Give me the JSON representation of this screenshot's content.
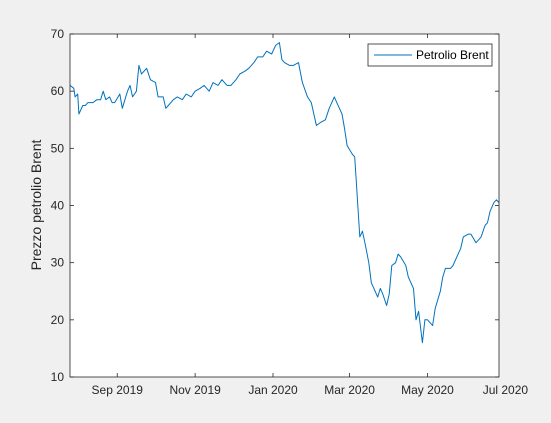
{
  "colors": {
    "figure_background": "#f0f0f0",
    "axes_background": "#ffffff",
    "axis": "#262626",
    "series": "#0072bd"
  },
  "chart_data": {
    "type": "line",
    "title": "",
    "xlabel": "",
    "ylabel": "Prezzo petrolio Brent",
    "xlim": [
      "2019-07-26",
      "2020-06-26"
    ],
    "ylim": [
      10,
      70
    ],
    "y_ticks": [
      10,
      20,
      30,
      40,
      50,
      60,
      70
    ],
    "x_ticks": [
      {
        "date": "2019-09-01",
        "label": "Sep 2019"
      },
      {
        "date": "2019-11-01",
        "label": "Nov 2019"
      },
      {
        "date": "2020-01-01",
        "label": "Jan 2020"
      },
      {
        "date": "2020-03-01",
        "label": "Mar 2020"
      },
      {
        "date": "2020-05-01",
        "label": "May 2020"
      },
      {
        "date": "2020-07-01",
        "label": "Jul 2020"
      }
    ],
    "grid": false,
    "legend": {
      "location": "top-right",
      "entries": [
        "Petrolio Brent"
      ]
    },
    "series": [
      {
        "name": "Petrolio Brent",
        "color": "#0072bd",
        "points": [
          [
            "2019-07-26",
            61.0
          ],
          [
            "2019-07-29",
            60.5
          ],
          [
            "2019-07-30",
            59.0
          ],
          [
            "2019-08-01",
            59.5
          ],
          [
            "2019-08-02",
            56.0
          ],
          [
            "2019-08-05",
            57.5
          ],
          [
            "2019-08-07",
            57.5
          ],
          [
            "2019-08-09",
            58.0
          ],
          [
            "2019-08-13",
            58.0
          ],
          [
            "2019-08-16",
            58.5
          ],
          [
            "2019-08-19",
            58.5
          ],
          [
            "2019-08-21",
            60.0
          ],
          [
            "2019-08-23",
            58.5
          ],
          [
            "2019-08-26",
            59.0
          ],
          [
            "2019-08-28",
            58.0
          ],
          [
            "2019-08-30",
            58.0
          ],
          [
            "2019-09-03",
            59.5
          ],
          [
            "2019-09-05",
            57.0
          ],
          [
            "2019-09-09",
            60.0
          ],
          [
            "2019-09-11",
            61.0
          ],
          [
            "2019-09-13",
            59.0
          ],
          [
            "2019-09-16",
            60.0
          ],
          [
            "2019-09-18",
            64.5
          ],
          [
            "2019-09-20",
            63.0
          ],
          [
            "2019-09-24",
            64.0
          ],
          [
            "2019-09-27",
            62.0
          ],
          [
            "2019-10-01",
            61.5
          ],
          [
            "2019-10-03",
            59.0
          ],
          [
            "2019-10-07",
            59.0
          ],
          [
            "2019-10-09",
            57.0
          ],
          [
            "2019-10-11",
            57.5
          ],
          [
            "2019-10-15",
            58.5
          ],
          [
            "2019-10-18",
            59.0
          ],
          [
            "2019-10-22",
            58.5
          ],
          [
            "2019-10-25",
            59.5
          ],
          [
            "2019-10-29",
            59.0
          ],
          [
            "2019-11-01",
            60.0
          ],
          [
            "2019-11-05",
            60.5
          ],
          [
            "2019-11-08",
            61.0
          ],
          [
            "2019-11-12",
            60.0
          ],
          [
            "2019-11-15",
            61.5
          ],
          [
            "2019-11-19",
            61.0
          ],
          [
            "2019-11-22",
            62.0
          ],
          [
            "2019-11-26",
            61.0
          ],
          [
            "2019-11-29",
            61.0
          ],
          [
            "2019-12-03",
            62.0
          ],
          [
            "2019-12-06",
            63.0
          ],
          [
            "2019-12-10",
            63.5
          ],
          [
            "2019-12-13",
            64.0
          ],
          [
            "2019-12-17",
            65.0
          ],
          [
            "2019-12-20",
            66.0
          ],
          [
            "2019-12-24",
            66.0
          ],
          [
            "2019-12-27",
            67.0
          ],
          [
            "2019-12-31",
            66.5
          ],
          [
            "2020-01-03",
            68.0
          ],
          [
            "2020-01-06",
            68.5
          ],
          [
            "2020-01-08",
            65.5
          ],
          [
            "2020-01-10",
            65.0
          ],
          [
            "2020-01-14",
            64.5
          ],
          [
            "2020-01-17",
            64.5
          ],
          [
            "2020-01-21",
            65.0
          ],
          [
            "2020-01-24",
            61.5
          ],
          [
            "2020-01-28",
            59.0
          ],
          [
            "2020-01-31",
            58.0
          ],
          [
            "2020-02-04",
            54.0
          ],
          [
            "2020-02-07",
            54.5
          ],
          [
            "2020-02-11",
            55.0
          ],
          [
            "2020-02-14",
            57.0
          ],
          [
            "2020-02-18",
            59.0
          ],
          [
            "2020-02-20",
            58.0
          ],
          [
            "2020-02-24",
            56.0
          ],
          [
            "2020-02-26",
            53.5
          ],
          [
            "2020-02-28",
            50.5
          ],
          [
            "2020-03-03",
            49.0
          ],
          [
            "2020-03-05",
            48.5
          ],
          [
            "2020-03-06",
            45.0
          ],
          [
            "2020-03-09",
            34.5
          ],
          [
            "2020-03-11",
            35.5
          ],
          [
            "2020-03-13",
            33.5
          ],
          [
            "2020-03-16",
            30.0
          ],
          [
            "2020-03-18",
            26.5
          ],
          [
            "2020-03-20",
            25.5
          ],
          [
            "2020-03-23",
            24.0
          ],
          [
            "2020-03-25",
            25.5
          ],
          [
            "2020-03-27",
            24.5
          ],
          [
            "2020-03-30",
            22.5
          ],
          [
            "2020-04-01",
            24.5
          ],
          [
            "2020-04-03",
            29.5
          ],
          [
            "2020-04-06",
            30.0
          ],
          [
            "2020-04-08",
            31.5
          ],
          [
            "2020-04-10",
            31.0
          ],
          [
            "2020-04-14",
            29.5
          ],
          [
            "2020-04-16",
            27.5
          ],
          [
            "2020-04-20",
            25.5
          ],
          [
            "2020-04-22",
            20.0
          ],
          [
            "2020-04-24",
            21.5
          ],
          [
            "2020-04-27",
            16.0
          ],
          [
            "2020-04-29",
            20.0
          ],
          [
            "2020-05-01",
            20.0
          ],
          [
            "2020-05-05",
            19.0
          ],
          [
            "2020-05-07",
            22.0
          ],
          [
            "2020-05-11",
            25.0
          ],
          [
            "2020-05-13",
            27.5
          ],
          [
            "2020-05-15",
            29.0
          ],
          [
            "2020-05-19",
            29.0
          ],
          [
            "2020-05-21",
            29.5
          ],
          [
            "2020-05-25",
            31.5
          ],
          [
            "2020-05-27",
            32.5
          ],
          [
            "2020-05-29",
            34.5
          ],
          [
            "2020-06-02",
            35.0
          ],
          [
            "2020-06-04",
            35.0
          ],
          [
            "2020-06-08",
            33.5
          ],
          [
            "2020-06-10",
            34.0
          ],
          [
            "2020-06-12",
            34.5
          ],
          [
            "2020-06-15",
            36.5
          ],
          [
            "2020-06-17",
            37.0
          ],
          [
            "2020-06-19",
            39.0
          ],
          [
            "2020-06-22",
            40.5
          ],
          [
            "2020-06-24",
            41.0
          ],
          [
            "2020-06-26",
            40.5
          ]
        ]
      }
    ]
  }
}
